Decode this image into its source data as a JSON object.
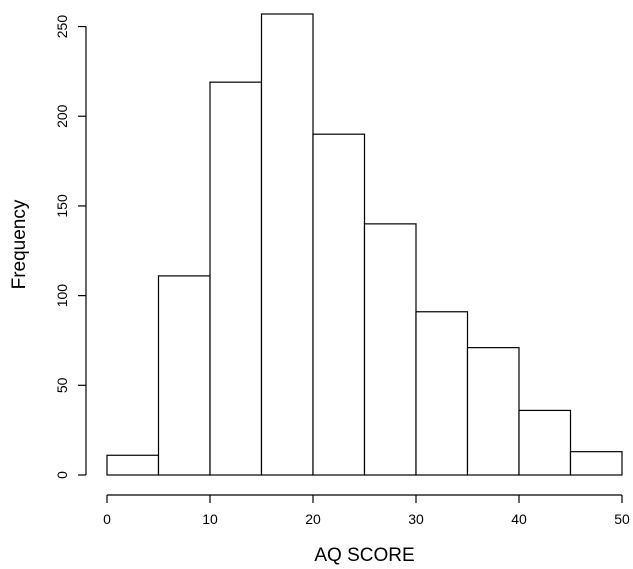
{
  "chart_data": {
    "type": "bar",
    "title": "",
    "xlabel": "AQ SCORE",
    "ylabel": "Frequency",
    "bin_edges": [
      0,
      5,
      10,
      15,
      20,
      25,
      30,
      35,
      40,
      45,
      50
    ],
    "values": [
      11,
      111,
      219,
      257,
      190,
      140,
      91,
      71,
      36,
      13
    ],
    "xlim": [
      0,
      50
    ],
    "ylim": [
      0,
      257
    ],
    "x_ticks": [
      "0",
      "10",
      "20",
      "30",
      "40",
      "50"
    ],
    "y_ticks": [
      "0",
      "50",
      "100",
      "150",
      "200",
      "250"
    ],
    "grid": false,
    "colors": {
      "bar_fill": "#ffffff",
      "bar_stroke": "#000000",
      "axis": "#000000"
    }
  }
}
